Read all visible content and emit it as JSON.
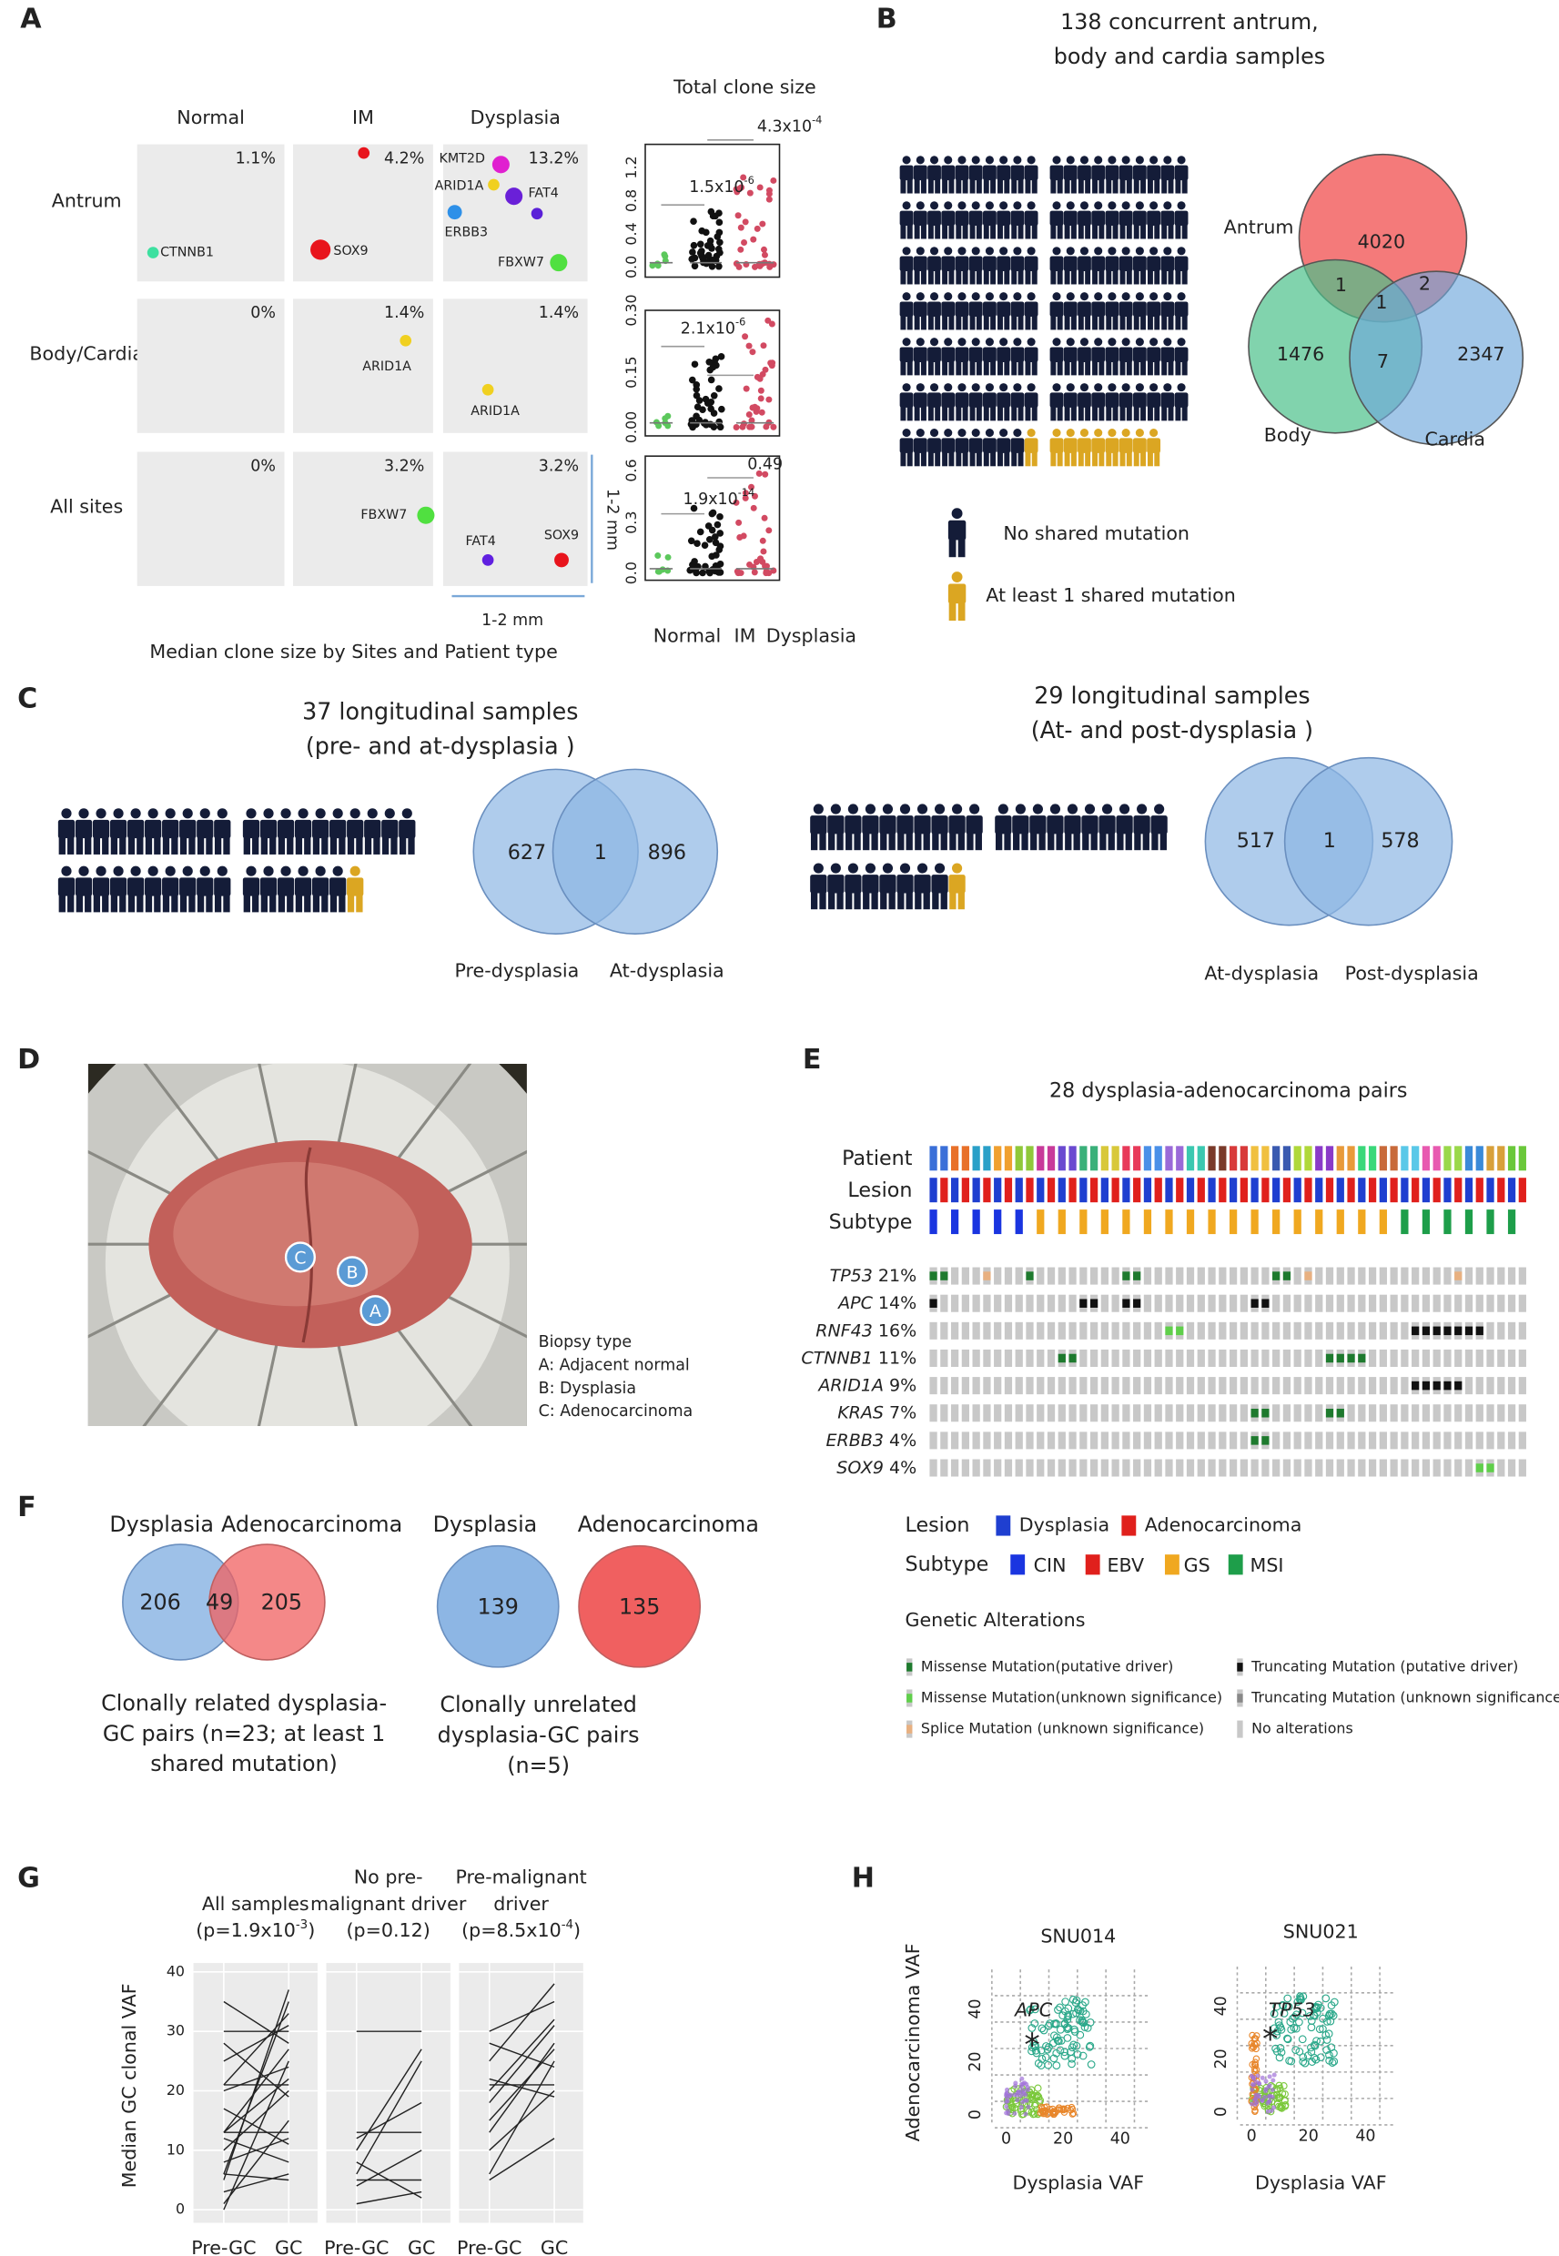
{
  "A": {
    "label": "A",
    "columns": [
      "Normal",
      "IM",
      "Dysplasia"
    ],
    "rows": [
      "Antrum",
      "Body/Cardia",
      "All sites"
    ],
    "percents": [
      [
        "1.1%",
        "4.2%",
        "13.2%"
      ],
      [
        "0%",
        "1.4%",
        "1.4%"
      ],
      [
        "0%",
        "3.2%",
        "3.2%"
      ]
    ],
    "genes": [
      "CTNNB1",
      "SOX9",
      "KMT2D",
      "ARID1A",
      "FAT4",
      "ERBB3",
      "FBXW7",
      "ARID1A",
      "ARID1A",
      "FBXW7",
      "FAT4",
      "SOX9"
    ],
    "scale": "1-2 mm",
    "caption": "Median clone size by Sites and Patient type",
    "clone_title": "Total clone size",
    "clone_yticks": [
      [
        "0.0",
        "0.4",
        "0.8",
        "1.2"
      ],
      [
        "0.00",
        "0.15",
        "0.30"
      ],
      [
        "0.0",
        "0.3",
        "0.6"
      ]
    ],
    "pvalues": [
      {
        "text": "1.5x10",
        "sup": "-6"
      },
      {
        "text": "4.3x10",
        "sup": "-4"
      },
      {
        "text": "2.1x10",
        "sup": "-6"
      },
      {
        "text": "0.49"
      },
      {
        "text": "1.9x10",
        "sup": "-14"
      }
    ],
    "clone_groups": [
      "Normal",
      "IM",
      "Dysplasia"
    ]
  },
  "B": {
    "label": "B",
    "title": [
      "138 concurrent antrum,",
      "body and cardia samples"
    ],
    "icons": {
      "no_shared": 129,
      "shared": 9
    },
    "legend": [
      "No shared mutation",
      "At least 1 shared mutation"
    ],
    "venn": {
      "sets": [
        "Antrum",
        "Body",
        "Cardia"
      ],
      "counts": [
        4020,
        1476,
        2347,
        1,
        2,
        1,
        7
      ]
    }
  },
  "C": {
    "label": "C",
    "left": {
      "title": [
        "37 longitudinal samples",
        "(pre- and at-dysplasia )"
      ],
      "icons": {
        "no_shared": 36,
        "shared": 1
      },
      "venn": {
        "sets": [
          "Pre-dysplasia",
          "At-dysplasia"
        ],
        "counts": [
          627,
          1,
          896
        ]
      }
    },
    "right": {
      "title": [
        "29 longitudinal samples",
        "(At- and post-dysplasia )"
      ],
      "icons": {
        "no_shared": 28,
        "shared": 1
      },
      "venn": {
        "sets": [
          "At-dysplasia",
          "Post-dysplasia"
        ],
        "counts": [
          517,
          1,
          578
        ]
      }
    }
  },
  "D": {
    "label": "D",
    "sites": [
      "C",
      "B",
      "A"
    ],
    "legend_title": "Biopsy type",
    "legend": [
      "A: Adjacent normal",
      "B: Dysplasia",
      "C: Adenocarcinoma"
    ]
  },
  "E": {
    "label": "E",
    "title": "28 dysplasia-adenocarcinoma pairs",
    "track_labels": [
      "Patient",
      "Lesion",
      "Subtype"
    ],
    "patient_colors": [
      "#3a6fd8",
      "#e8712a",
      "#2aa0c8",
      "#f0a030",
      "#8fc83a",
      "#c83a9a",
      "#6a4ad0",
      "#3ab07a",
      "#d8c83a",
      "#e83a5a",
      "#4a90e8",
      "#9a6ad8",
      "#3ac8b0",
      "#7a3a2a",
      "#d83a3a",
      "#f0c040",
      "#3a5ab0",
      "#b0d83a",
      "#8a3ac8",
      "#e89a3a",
      "#3ad87a",
      "#c86a3a",
      "#5ac8e8",
      "#e85ab0",
      "#9ad84a",
      "#3a8ad8",
      "#d8a03a",
      "#6ac83a"
    ],
    "subtypes": [
      0,
      0,
      0,
      0,
      0,
      2,
      2,
      2,
      2,
      2,
      2,
      2,
      2,
      2,
      2,
      2,
      2,
      2,
      2,
      2,
      2,
      2,
      3,
      3,
      3,
      3,
      3,
      3
    ],
    "genes": [
      {
        "name": "TP53",
        "freq": "21%",
        "alterations": [
          [
            0,
            0
          ],
          [
            1,
            0
          ],
          [
            5,
            2
          ],
          [
            9,
            0
          ],
          [
            18,
            0
          ],
          [
            19,
            0
          ],
          [
            32,
            0
          ],
          [
            33,
            0
          ],
          [
            35,
            2
          ],
          [
            49,
            2
          ]
        ]
      },
      {
        "name": "APC",
        "freq": "14%",
        "alterations": [
          [
            0,
            3
          ],
          [
            14,
            3
          ],
          [
            15,
            3
          ],
          [
            18,
            3
          ],
          [
            19,
            3
          ],
          [
            30,
            3
          ],
          [
            31,
            3
          ]
        ]
      },
      {
        "name": "RNF43",
        "freq": "16%",
        "alterations": [
          [
            22,
            1
          ],
          [
            23,
            1
          ],
          [
            45,
            3
          ],
          [
            46,
            3
          ],
          [
            47,
            3
          ],
          [
            48,
            3
          ],
          [
            49,
            3
          ],
          [
            50,
            3
          ],
          [
            51,
            3
          ]
        ]
      },
      {
        "name": "CTNNB1",
        "freq": "11%",
        "alterations": [
          [
            12,
            0
          ],
          [
            13,
            0
          ],
          [
            37,
            0
          ],
          [
            38,
            0
          ],
          [
            39,
            0
          ],
          [
            40,
            0
          ]
        ]
      },
      {
        "name": "ARID1A",
        "freq": "9%",
        "alterations": [
          [
            45,
            3
          ],
          [
            46,
            3
          ],
          [
            47,
            3
          ],
          [
            48,
            3
          ],
          [
            49,
            3
          ]
        ]
      },
      {
        "name": "KRAS",
        "freq": "7%",
        "alterations": [
          [
            30,
            0
          ],
          [
            31,
            0
          ],
          [
            37,
            0
          ],
          [
            38,
            0
          ]
        ]
      },
      {
        "name": "ERBB3",
        "freq": "4%",
        "alterations": [
          [
            30,
            0
          ],
          [
            31,
            0
          ]
        ]
      },
      {
        "name": "SOX9",
        "freq": "4%",
        "alterations": [
          [
            51,
            1
          ],
          [
            52,
            1
          ]
        ]
      }
    ],
    "legend": {
      "lesion_title": "Lesion",
      "lesion": [
        {
          "name": "Dysplasia",
          "color": "#1f3fd0"
        },
        {
          "name": "Adenocarcinoma",
          "color": "#e0201c"
        }
      ],
      "subtype_title": "Subtype",
      "subtype": [
        {
          "name": "CIN",
          "color": "#1a35e0"
        },
        {
          "name": "EBV",
          "color": "#e0201c"
        },
        {
          "name": "GS",
          "color": "#f0a820"
        },
        {
          "name": "MSI",
          "color": "#1e9e4a"
        }
      ],
      "alteration_title": "Genetic Alterations",
      "alterations": [
        {
          "name": "Missense Mutation(putative driver)",
          "color": "#1e7a2e"
        },
        {
          "name": "Missense Mutation(unknown significance)",
          "color": "#5fcf4a"
        },
        {
          "name": "Splice Mutation (unknown significance)",
          "color": "#e8b080"
        },
        {
          "name": "Truncating Mutation (putative driver)",
          "color": "#111111"
        },
        {
          "name": "Truncating Mutation (unknown significance)",
          "color": "#888888"
        },
        {
          "name": "No alterations",
          "color": "#c8c8c8"
        }
      ]
    }
  },
  "F": {
    "label": "F",
    "related": {
      "sets": [
        "Dysplasia",
        "Adenocarcinoma"
      ],
      "counts": [
        206,
        49,
        205
      ],
      "caption": [
        "Clonally related dysplasia-",
        "GC pairs (n=23; at least 1",
        "shared mutation)"
      ]
    },
    "unrelated": {
      "sets": [
        "Dysplasia",
        "Adenocarcinoma"
      ],
      "counts": [
        139,
        135
      ],
      "caption": [
        "Clonally unrelated",
        "dysplasia-GC pairs",
        "(n=5)"
      ]
    }
  },
  "G": {
    "label": "G",
    "ylabel": "Median GC clonal VAF",
    "ylim": [
      -2.2,
      41.5
    ],
    "yticks": [
      0,
      10,
      20,
      30,
      40
    ],
    "xlabels": [
      "Pre-GC",
      "GC"
    ],
    "panels": [
      {
        "title": [
          {
            "text": "All samples"
          },
          {
            "text": "(p=1.9x10",
            "sup": "-3",
            "tail": ")"
          }
        ],
        "pairs": [
          [
            30,
            30
          ],
          [
            35,
            28
          ],
          [
            21,
            33
          ],
          [
            13,
            22
          ],
          [
            13,
            27
          ],
          [
            6,
            35
          ],
          [
            5,
            37
          ],
          [
            21,
            21
          ],
          [
            13,
            13
          ],
          [
            6,
            5
          ],
          [
            10,
            20
          ],
          [
            1,
            15
          ],
          [
            25,
            31
          ],
          [
            17,
            11
          ],
          [
            3,
            6
          ],
          [
            0,
            25
          ],
          [
            28,
            19
          ],
          [
            20,
            24
          ],
          [
            8,
            12
          ],
          [
            12,
            8
          ]
        ]
      },
      {
        "title": [
          {
            "text": "No pre-"
          },
          {
            "text": "malignant driver"
          },
          {
            "text": "(p=0.12)"
          }
        ],
        "pairs": [
          [
            30,
            30
          ],
          [
            13,
            13
          ],
          [
            5,
            5
          ],
          [
            6,
            25
          ],
          [
            10,
            27
          ],
          [
            1,
            3
          ],
          [
            12,
            18
          ],
          [
            4,
            10
          ],
          [
            8,
            2
          ]
        ]
      },
      {
        "title": [
          {
            "text": "Pre-malignant"
          },
          {
            "text": "driver"
          },
          {
            "text": "(p=8.5x10",
            "sup": "-4",
            "tail": ")"
          }
        ],
        "pairs": [
          [
            21,
            21
          ],
          [
            30,
            35
          ],
          [
            25,
            38
          ],
          [
            13,
            28
          ],
          [
            20,
            32
          ],
          [
            6,
            25
          ],
          [
            10,
            20
          ],
          [
            28,
            24
          ],
          [
            18,
            31
          ],
          [
            15,
            27
          ],
          [
            5,
            12
          ],
          [
            22,
            19
          ]
        ]
      }
    ]
  },
  "H": {
    "label": "H",
    "xlabel": "Dysplasia VAF",
    "ylabel": "Adenocarcinoma VAF",
    "ticks": [
      0,
      20,
      40
    ],
    "plots": [
      {
        "title": "SNU014",
        "gene": "APC",
        "marker": "*"
      },
      {
        "title": "SNU021",
        "gene": "TP53",
        "marker": "*"
      }
    ]
  }
}
